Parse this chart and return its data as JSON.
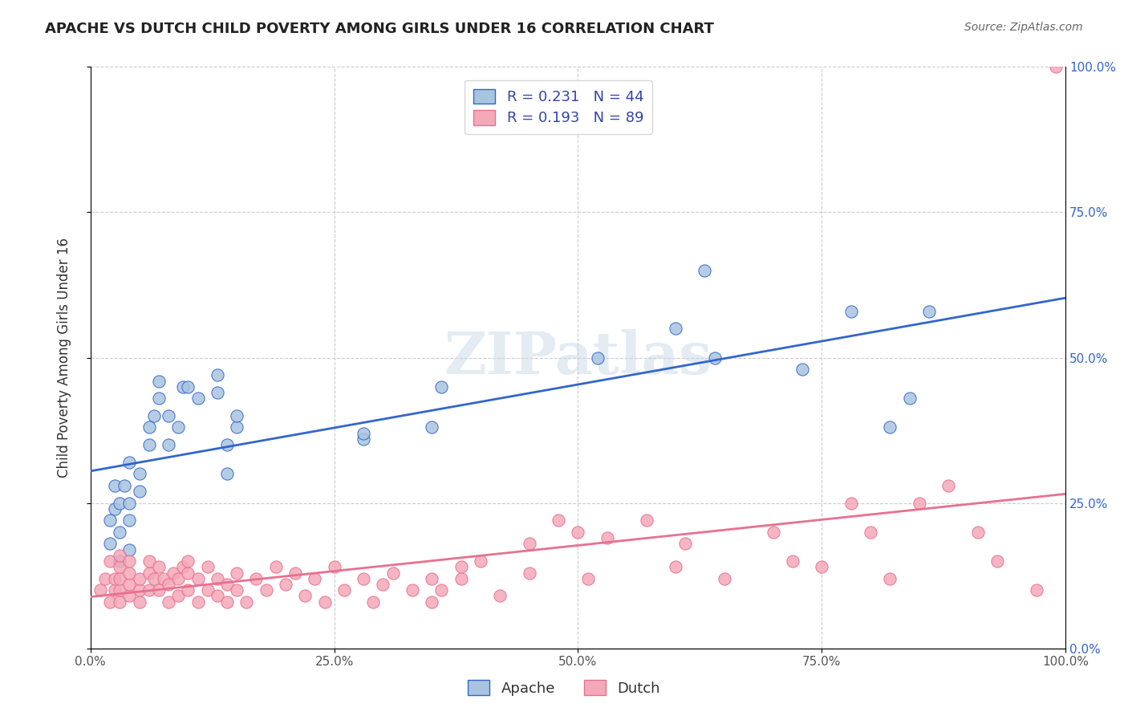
{
  "title": "APACHE VS DUTCH CHILD POVERTY AMONG GIRLS UNDER 16 CORRELATION CHART",
  "source": "Source: ZipAtlas.com",
  "xlabel": "",
  "ylabel": "Child Poverty Among Girls Under 16",
  "xlim": [
    0,
    1.0
  ],
  "ylim": [
    0,
    1.0
  ],
  "xticks": [
    0.0,
    0.25,
    0.5,
    0.75,
    1.0
  ],
  "xticklabels": [
    "0.0%",
    "25.0%",
    "50.0%",
    "75.0%",
    "100.0%"
  ],
  "ytick_labels_right": [
    "0.0%",
    "25.0%",
    "50.0%",
    "75.0%",
    "100.0%"
  ],
  "apache_R": 0.231,
  "apache_N": 44,
  "dutch_R": 0.193,
  "dutch_N": 89,
  "apache_color": "#a8c4e0",
  "dutch_color": "#f4a8b8",
  "apache_line_color": "#3366cc",
  "dutch_line_color": "#e87090",
  "legend_text_color": "#3344aa",
  "watermark": "ZIPatlas",
  "apache_x": [
    0.02,
    0.02,
    0.025,
    0.025,
    0.03,
    0.03,
    0.03,
    0.035,
    0.04,
    0.04,
    0.04,
    0.04,
    0.05,
    0.05,
    0.06,
    0.06,
    0.065,
    0.07,
    0.07,
    0.08,
    0.08,
    0.09,
    0.095,
    0.1,
    0.11,
    0.13,
    0.13,
    0.14,
    0.14,
    0.15,
    0.15,
    0.28,
    0.28,
    0.35,
    0.36,
    0.52,
    0.6,
    0.63,
    0.64,
    0.73,
    0.78,
    0.82,
    0.84,
    0.86
  ],
  "apache_y": [
    0.18,
    0.22,
    0.24,
    0.28,
    0.15,
    0.2,
    0.25,
    0.28,
    0.17,
    0.22,
    0.25,
    0.32,
    0.27,
    0.3,
    0.35,
    0.38,
    0.4,
    0.43,
    0.46,
    0.35,
    0.4,
    0.38,
    0.45,
    0.45,
    0.43,
    0.44,
    0.47,
    0.3,
    0.35,
    0.38,
    0.4,
    0.36,
    0.37,
    0.38,
    0.45,
    0.5,
    0.55,
    0.65,
    0.5,
    0.48,
    0.58,
    0.38,
    0.43,
    0.58
  ],
  "dutch_x": [
    0.01,
    0.015,
    0.02,
    0.02,
    0.025,
    0.025,
    0.03,
    0.03,
    0.03,
    0.03,
    0.03,
    0.04,
    0.04,
    0.04,
    0.04,
    0.05,
    0.05,
    0.05,
    0.06,
    0.06,
    0.06,
    0.065,
    0.07,
    0.07,
    0.075,
    0.08,
    0.08,
    0.085,
    0.09,
    0.09,
    0.095,
    0.1,
    0.1,
    0.1,
    0.11,
    0.11,
    0.12,
    0.12,
    0.13,
    0.13,
    0.14,
    0.14,
    0.15,
    0.15,
    0.16,
    0.17,
    0.18,
    0.19,
    0.2,
    0.21,
    0.22,
    0.23,
    0.24,
    0.25,
    0.26,
    0.28,
    0.29,
    0.3,
    0.31,
    0.33,
    0.35,
    0.35,
    0.36,
    0.38,
    0.38,
    0.4,
    0.42,
    0.45,
    0.45,
    0.48,
    0.5,
    0.51,
    0.53,
    0.57,
    0.6,
    0.61,
    0.65,
    0.7,
    0.72,
    0.75,
    0.78,
    0.8,
    0.82,
    0.85,
    0.88,
    0.91,
    0.93,
    0.97,
    0.99
  ],
  "dutch_y": [
    0.1,
    0.12,
    0.08,
    0.15,
    0.1,
    0.12,
    0.08,
    0.1,
    0.12,
    0.14,
    0.16,
    0.09,
    0.11,
    0.13,
    0.15,
    0.08,
    0.1,
    0.12,
    0.1,
    0.13,
    0.15,
    0.12,
    0.1,
    0.14,
    0.12,
    0.08,
    0.11,
    0.13,
    0.09,
    0.12,
    0.14,
    0.1,
    0.13,
    0.15,
    0.08,
    0.12,
    0.1,
    0.14,
    0.09,
    0.12,
    0.08,
    0.11,
    0.1,
    0.13,
    0.08,
    0.12,
    0.1,
    0.14,
    0.11,
    0.13,
    0.09,
    0.12,
    0.08,
    0.14,
    0.1,
    0.12,
    0.08,
    0.11,
    0.13,
    0.1,
    0.08,
    0.12,
    0.1,
    0.14,
    0.12,
    0.15,
    0.09,
    0.13,
    0.18,
    0.22,
    0.2,
    0.12,
    0.19,
    0.22,
    0.14,
    0.18,
    0.12,
    0.2,
    0.15,
    0.14,
    0.25,
    0.2,
    0.12,
    0.25,
    0.28,
    0.2,
    0.15,
    0.1,
    1.0
  ]
}
